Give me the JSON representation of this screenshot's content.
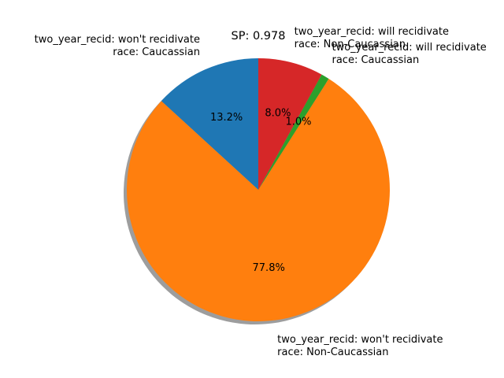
{
  "chart_data": {
    "type": "pie",
    "title": "SP: 0.978",
    "start_angle_deg": 90,
    "direction": "counterclockwise",
    "shadow": true,
    "slices": [
      {
        "label_lines": [
          "two_year_recid: won't recidivate",
          "race: Caucassian"
        ],
        "value": 13.2,
        "pct_label": "13.2%",
        "color": "#1f77b4"
      },
      {
        "label_lines": [
          "two_year_recid: won't recidivate",
          "race: Non-Caucassian"
        ],
        "value": 77.8,
        "pct_label": "77.8%",
        "color": "#ff7f0e"
      },
      {
        "label_lines": [
          "two_year_recid: will recidivate",
          "race: Caucassian"
        ],
        "value": 1.0,
        "pct_label": "1.0%",
        "color": "#2ca02c"
      },
      {
        "label_lines": [
          "two_year_recid: will recidivate",
          "race: Non-Caucassian"
        ],
        "value": 8.0,
        "pct_label": "8.0%",
        "color": "#d62728"
      }
    ]
  }
}
